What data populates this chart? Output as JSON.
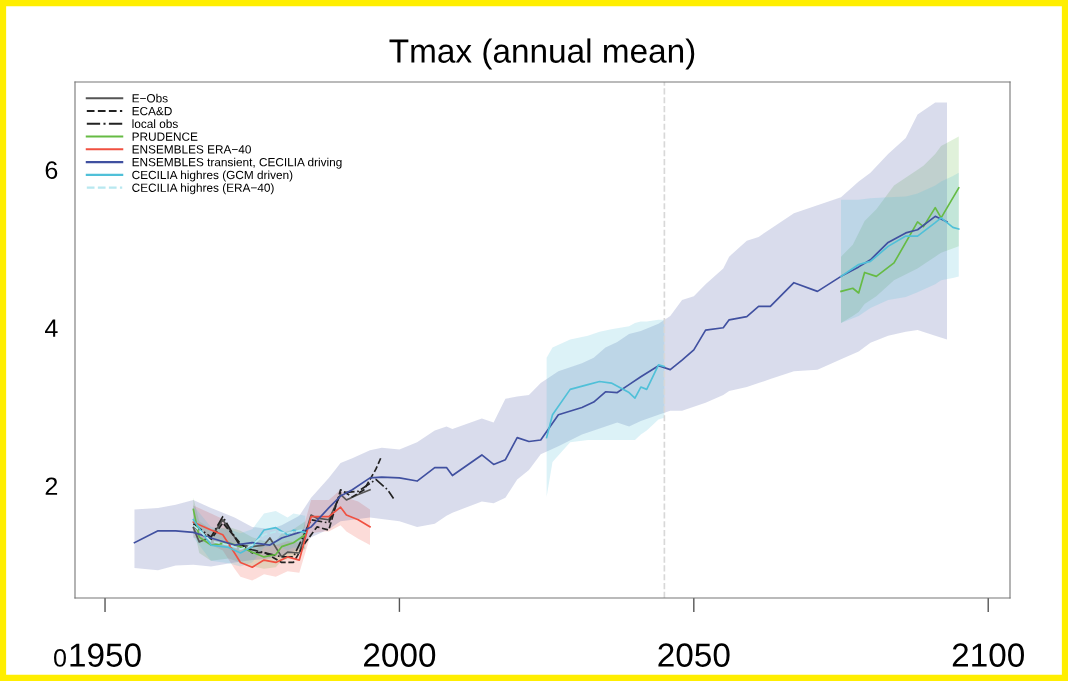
{
  "chart_data": {
    "type": "line",
    "title": "Tmax (annual mean)",
    "xlim": [
      1944.9,
      2103.7
    ],
    "ylim": [
      0.58,
      7.11
    ],
    "xticks": [
      1950,
      2000,
      2050,
      2100
    ],
    "yticks": [
      2,
      4,
      6
    ],
    "annotations": [
      "0"
    ],
    "grid": false,
    "legend": "top left",
    "marker": "none",
    "ref_lines": [
      {
        "axis": "x",
        "value": 2045,
        "label": null,
        "color": "#d8d8d8",
        "line_style": "dashed"
      }
    ],
    "series": [
      {
        "name": "E−Obs",
        "color": "#555555",
        "line_style": "solid",
        "x": [
          1965,
          1966,
          1968,
          1970,
          1972,
          1973,
          1975,
          1977,
          1978,
          1980,
          1981,
          1983,
          1985,
          1986,
          1988,
          1990,
          1991,
          1993,
          1995
        ],
        "values": [
          1.47,
          1.29,
          1.35,
          1.57,
          1.35,
          1.25,
          1.23,
          1.25,
          1.34,
          1.1,
          1.16,
          1.15,
          1.63,
          1.59,
          1.57,
          1.89,
          1.82,
          1.89,
          1.95
        ]
      },
      {
        "name": "ECA&D",
        "color": "#222222",
        "line_style": "dashed",
        "x": [
          1965,
          1968,
          1970,
          1973,
          1975,
          1977,
          1980,
          1982,
          1984,
          1986,
          1988,
          1990,
          1992,
          1994,
          1996,
          1997
        ],
        "values": [
          1.49,
          1.32,
          1.53,
          1.27,
          1.15,
          1.16,
          1.03,
          1.03,
          1.28,
          1.48,
          1.44,
          1.95,
          1.86,
          1.95,
          2.21,
          2.38
        ]
      },
      {
        "name": "local obs",
        "color": "#222222",
        "line_style": "dashdot",
        "x": [
          1965,
          1968,
          1970,
          1973,
          1975,
          1980,
          1982,
          1985,
          1988,
          1990,
          1993,
          1996,
          1998,
          1999
        ],
        "values": [
          1.52,
          1.35,
          1.61,
          1.23,
          1.19,
          1.1,
          1.1,
          1.57,
          1.53,
          1.91,
          1.93,
          2.08,
          1.95,
          1.84
        ]
      },
      {
        "name": "PRUDENCE",
        "color": "#66bb44",
        "line_style": "solid",
        "x": [
          1965,
          1966,
          1968,
          1971,
          1973,
          1975,
          1977,
          1979,
          1980,
          1982,
          1984,
          1985,
          2075,
          2077,
          2078,
          2079,
          2081,
          2084,
          2088,
          2089,
          2091,
          2092,
          2095
        ],
        "values": [
          1.7,
          1.35,
          1.25,
          1.28,
          1.23,
          1.16,
          1.1,
          1.13,
          1.23,
          1.28,
          1.38,
          null,
          4.46,
          4.5,
          4.44,
          4.7,
          4.65,
          4.82,
          5.34,
          5.28,
          5.52,
          5.39,
          5.77
        ],
        "lower": [
          1.5,
          1.15,
          1.05,
          1.08,
          1.03,
          0.98,
          0.95,
          0.97,
          1.05,
          1.1,
          1.2,
          null,
          4.06,
          4.15,
          4.2,
          4.3,
          4.4,
          4.6,
          4.75,
          4.8,
          4.9,
          4.95,
          5.03
        ],
        "upper": [
          1.85,
          1.55,
          1.45,
          1.48,
          1.43,
          1.35,
          1.3,
          1.3,
          1.4,
          1.45,
          1.55,
          null,
          4.9,
          5.05,
          5.2,
          5.35,
          5.5,
          5.8,
          6.0,
          6.05,
          6.2,
          6.3,
          6.42
        ]
      },
      {
        "name": "ENSEMBLES ERA−40",
        "color": "#f05040",
        "line_style": "solid",
        "x": [
          1965,
          1968,
          1970,
          1972,
          1973,
          1975,
          1977,
          1979,
          1981,
          1983,
          1985,
          1987,
          1988,
          1990,
          1991,
          1993,
          1995
        ],
        "values": [
          1.54,
          1.44,
          1.38,
          1.15,
          1.03,
          0.97,
          1.06,
          1.03,
          1.1,
          1.06,
          1.61,
          1.61,
          1.61,
          1.73,
          1.63,
          1.57,
          1.48
        ],
        "lower": [
          1.35,
          1.25,
          1.18,
          0.95,
          0.85,
          0.8,
          0.88,
          0.85,
          0.92,
          0.9,
          1.4,
          1.42,
          1.42,
          1.5,
          1.42,
          1.33,
          1.25
        ],
        "upper": [
          1.75,
          1.65,
          1.58,
          1.38,
          1.25,
          1.18,
          1.26,
          1.25,
          1.3,
          1.28,
          1.82,
          1.82,
          1.82,
          1.95,
          1.85,
          1.8,
          1.7
        ]
      },
      {
        "name": "ENSEMBLES transient, CECILIA driving",
        "color": "#4050a0",
        "line_style": "solid",
        "x": [
          1955,
          1959,
          1962,
          1965,
          1968,
          1972,
          1975,
          1978,
          1980,
          1983,
          1985,
          1988,
          1990,
          1992,
          1995,
          1997,
          2000,
          2003,
          2006,
          2008,
          2009,
          2014,
          2016,
          2018,
          2020,
          2022,
          2024,
          2027,
          2031,
          2033,
          2035,
          2037,
          2039,
          2041,
          2044,
          2046,
          2048,
          2050,
          2052,
          2055,
          2056,
          2059,
          2061,
          2063,
          2067,
          2071,
          2075,
          2078,
          2080,
          2083,
          2086,
          2088,
          2091,
          2093
        ],
        "values": [
          1.28,
          1.43,
          1.43,
          1.41,
          1.34,
          1.25,
          1.28,
          1.25,
          1.34,
          1.41,
          1.48,
          1.72,
          1.87,
          1.95,
          2.1,
          2.11,
          2.1,
          2.06,
          2.23,
          2.23,
          2.13,
          2.39,
          2.27,
          2.33,
          2.61,
          2.56,
          2.58,
          2.9,
          2.99,
          3.06,
          3.19,
          3.18,
          3.28,
          3.38,
          3.52,
          3.47,
          3.59,
          3.72,
          3.97,
          4.0,
          4.1,
          4.14,
          4.27,
          4.27,
          4.57,
          4.46,
          4.65,
          4.77,
          4.86,
          5.08,
          5.2,
          5.24,
          5.41,
          5.34
        ],
        "lower": [
          0.96,
          0.93,
          0.99,
          1.0,
          0.98,
          1.03,
          1.06,
          1.08,
          1.12,
          1.2,
          1.35,
          1.45,
          1.55,
          1.57,
          1.6,
          1.58,
          1.55,
          1.48,
          1.52,
          1.62,
          1.66,
          1.8,
          1.78,
          1.85,
          2.08,
          2.2,
          2.4,
          2.5,
          2.65,
          2.7,
          2.75,
          2.8,
          2.75,
          2.82,
          2.9,
          2.95,
          2.95,
          3.0,
          3.05,
          3.15,
          3.2,
          3.25,
          3.3,
          3.35,
          3.45,
          3.47,
          3.6,
          3.7,
          3.81,
          3.9,
          3.95,
          3.97,
          3.9,
          3.85
        ],
        "upper": [
          1.7,
          1.72,
          1.76,
          1.82,
          1.72,
          1.6,
          1.48,
          1.45,
          1.5,
          1.62,
          1.85,
          2.1,
          2.29,
          2.35,
          2.45,
          2.48,
          2.46,
          2.55,
          2.7,
          2.75,
          2.72,
          2.85,
          2.8,
          3.1,
          3.13,
          3.15,
          3.3,
          3.45,
          3.55,
          3.62,
          3.75,
          3.82,
          3.92,
          3.96,
          4.05,
          4.15,
          4.35,
          4.4,
          4.55,
          4.75,
          4.9,
          5.1,
          5.15,
          5.25,
          5.45,
          5.55,
          5.65,
          5.85,
          5.96,
          6.2,
          6.4,
          6.7,
          6.85,
          6.85
        ]
      },
      {
        "name": "CECILIA highres (GCM driven)",
        "color": "#50c0d8",
        "line_style": "solid",
        "x": [
          1965,
          1968,
          1971,
          1973,
          1975,
          1977,
          1979,
          1981,
          1982,
          1984,
          2000,
          2025,
          2026,
          2029,
          2032,
          2034,
          2036,
          2039,
          2040,
          2041,
          2042,
          2044,
          2045,
          2060,
          2075,
          2078,
          2080,
          2083,
          2086,
          2088,
          2091,
          2092,
          2094,
          2095
        ],
        "values": [
          1.57,
          1.25,
          1.22,
          1.15,
          1.23,
          1.44,
          1.47,
          1.38,
          1.44,
          1.41,
          null,
          2.61,
          2.9,
          3.22,
          3.28,
          3.32,
          3.3,
          3.18,
          3.11,
          3.25,
          3.22,
          3.53,
          3.51,
          null,
          4.65,
          4.8,
          4.84,
          5.03,
          5.16,
          5.16,
          5.33,
          5.39,
          5.27,
          5.25
        ],
        "lower": [
          1.35,
          1.05,
          1.02,
          0.98,
          1.03,
          1.22,
          1.25,
          1.18,
          1.22,
          1.2,
          null,
          1.86,
          2.3,
          2.55,
          2.58,
          2.58,
          2.58,
          2.58,
          2.58,
          2.65,
          2.7,
          2.84,
          2.86,
          null,
          4.06,
          4.15,
          4.25,
          4.35,
          4.39,
          4.45,
          4.55,
          4.6,
          4.63,
          4.65
        ],
        "upper": [
          1.75,
          1.48,
          1.45,
          1.4,
          1.45,
          1.65,
          1.68,
          1.6,
          1.65,
          1.62,
          null,
          3.62,
          3.75,
          3.85,
          3.9,
          3.95,
          3.98,
          4.02,
          4.06,
          4.08,
          4.08,
          4.1,
          4.1,
          null,
          5.62,
          5.62,
          5.64,
          5.65,
          5.66,
          5.7,
          5.8,
          5.85,
          5.92,
          5.96
        ]
      },
      {
        "name": "CECILIA highres (ERA−40)",
        "color": "#b8e8f0",
        "line_style": "dashed",
        "x": [
          1965,
          1968,
          1971,
          1973,
          1975,
          1977,
          1979,
          1981,
          1984
        ],
        "values": [
          1.5,
          1.3,
          1.25,
          1.2,
          1.25,
          1.38,
          1.42,
          1.4,
          1.45
        ]
      }
    ]
  }
}
